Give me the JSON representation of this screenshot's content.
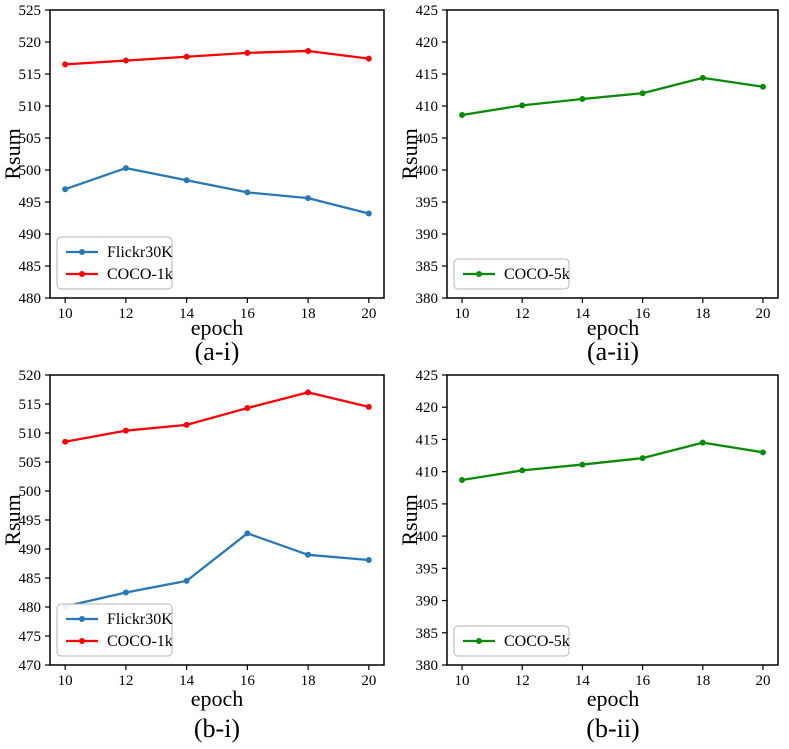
{
  "figure": {
    "background": "#ffffff",
    "axis_color": "#000000",
    "legend_border_color": "#b5b5b5",
    "legend_background": "#ffffff"
  },
  "chart_data": [
    {
      "id": "a-i",
      "type": "line",
      "caption": "(a-i)",
      "xlabel": "epoch",
      "ylabel": "Rsum",
      "x": [
        10,
        12,
        14,
        16,
        18,
        20
      ],
      "xticks": [
        10,
        12,
        14,
        16,
        18,
        20
      ],
      "yticks": [
        480,
        485,
        490,
        495,
        500,
        505,
        510,
        515,
        520,
        525
      ],
      "xlim": [
        9.5,
        20.5
      ],
      "ylim": [
        480,
        525
      ],
      "grid": false,
      "legend_position": "lower left",
      "series": [
        {
          "name": "Flickr30K",
          "color": "#2878b5",
          "values": [
            497.0,
            500.3,
            498.4,
            496.5,
            495.6,
            493.2
          ]
        },
        {
          "name": "COCO-1k",
          "color": "#fb0007",
          "values": [
            516.5,
            517.1,
            517.7,
            518.3,
            518.6,
            517.4
          ]
        }
      ]
    },
    {
      "id": "a-ii",
      "type": "line",
      "caption": "(a-ii)",
      "xlabel": "epoch",
      "ylabel": "Rsum",
      "x": [
        10,
        12,
        14,
        16,
        18,
        20
      ],
      "xticks": [
        10,
        12,
        14,
        16,
        18,
        20
      ],
      "yticks": [
        380,
        385,
        390,
        395,
        400,
        405,
        410,
        415,
        420,
        425
      ],
      "xlim": [
        9.5,
        20.5
      ],
      "ylim": [
        380,
        425
      ],
      "grid": false,
      "legend_position": "lower left",
      "series": [
        {
          "name": "COCO-5k",
          "color": "#0a8a0a",
          "values": [
            408.6,
            410.1,
            411.1,
            412.0,
            414.4,
            413.0
          ]
        }
      ]
    },
    {
      "id": "b-i",
      "type": "line",
      "caption": "(b-i)",
      "xlabel": "epoch",
      "ylabel": "Rsum",
      "x": [
        10,
        12,
        14,
        16,
        18,
        20
      ],
      "xticks": [
        10,
        12,
        14,
        16,
        18,
        20
      ],
      "yticks": [
        470,
        475,
        480,
        485,
        490,
        495,
        500,
        505,
        510,
        515,
        520
      ],
      "xlim": [
        9.5,
        20.5
      ],
      "ylim": [
        470,
        520
      ],
      "grid": false,
      "legend_position": "lower left",
      "series": [
        {
          "name": "Flickr30K",
          "color": "#2878b5",
          "values": [
            480.1,
            482.5,
            484.5,
            492.7,
            489.0,
            488.1
          ]
        },
        {
          "name": "COCO-1k",
          "color": "#fb0007",
          "values": [
            508.5,
            510.4,
            511.4,
            514.3,
            517.0,
            514.5
          ]
        }
      ]
    },
    {
      "id": "b-ii",
      "type": "line",
      "caption": "(b-ii)",
      "xlabel": "epoch",
      "ylabel": "Rsum",
      "x": [
        10,
        12,
        14,
        16,
        18,
        20
      ],
      "xticks": [
        10,
        12,
        14,
        16,
        18,
        20
      ],
      "yticks": [
        380,
        385,
        390,
        395,
        400,
        405,
        410,
        415,
        420,
        425
      ],
      "xlim": [
        9.5,
        20.5
      ],
      "ylim": [
        380,
        425
      ],
      "grid": false,
      "legend_position": "lower left",
      "series": [
        {
          "name": "COCO-5k",
          "color": "#0a8a0a",
          "values": [
            408.7,
            410.2,
            411.1,
            412.1,
            414.5,
            413.0
          ]
        }
      ]
    }
  ]
}
